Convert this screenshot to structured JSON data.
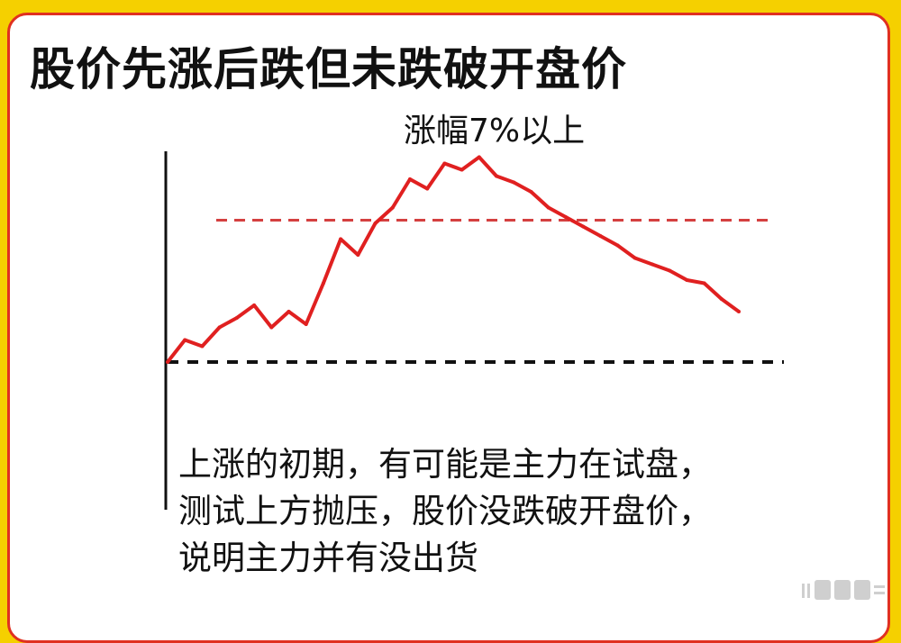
{
  "title": "股价先涨后跌但未跌破开盘价",
  "chart_data": {
    "type": "line",
    "title": "股价先涨后跌但未跌破开盘价",
    "xlabel": "",
    "ylabel": "",
    "baseline_open": 0,
    "support_level": 4.5,
    "peak_annotation": "涨幅7%以上",
    "x": [
      0,
      1,
      2,
      3,
      4,
      5,
      6,
      7,
      8,
      9,
      10,
      11,
      12,
      13,
      14,
      15,
      16,
      17,
      18,
      19,
      20,
      21,
      22,
      23,
      24,
      25,
      26,
      27,
      28,
      29,
      30,
      31,
      32,
      33
    ],
    "values": [
      0,
      0.7,
      0.5,
      1.1,
      1.4,
      1.8,
      1.1,
      1.6,
      1.2,
      2.5,
      3.9,
      3.4,
      4.4,
      4.9,
      5.8,
      5.5,
      6.3,
      6.1,
      6.5,
      5.9,
      5.7,
      5.4,
      4.9,
      4.6,
      4.3,
      4.0,
      3.7,
      3.3,
      3.1,
      2.9,
      2.6,
      2.5,
      2.0,
      1.6
    ],
    "series_color": "#e02020",
    "support_color": "#d44040",
    "baseline_color": "#111111",
    "ylim": [
      0,
      7
    ],
    "grid": false
  },
  "note_lines": [
    "上涨的初期，有可能是主力在试盘，",
    "测试上方抛压，股价没跌破开盘价，",
    "说明主力并有没出货"
  ],
  "watermark_icon": "watermark-logo-icon"
}
